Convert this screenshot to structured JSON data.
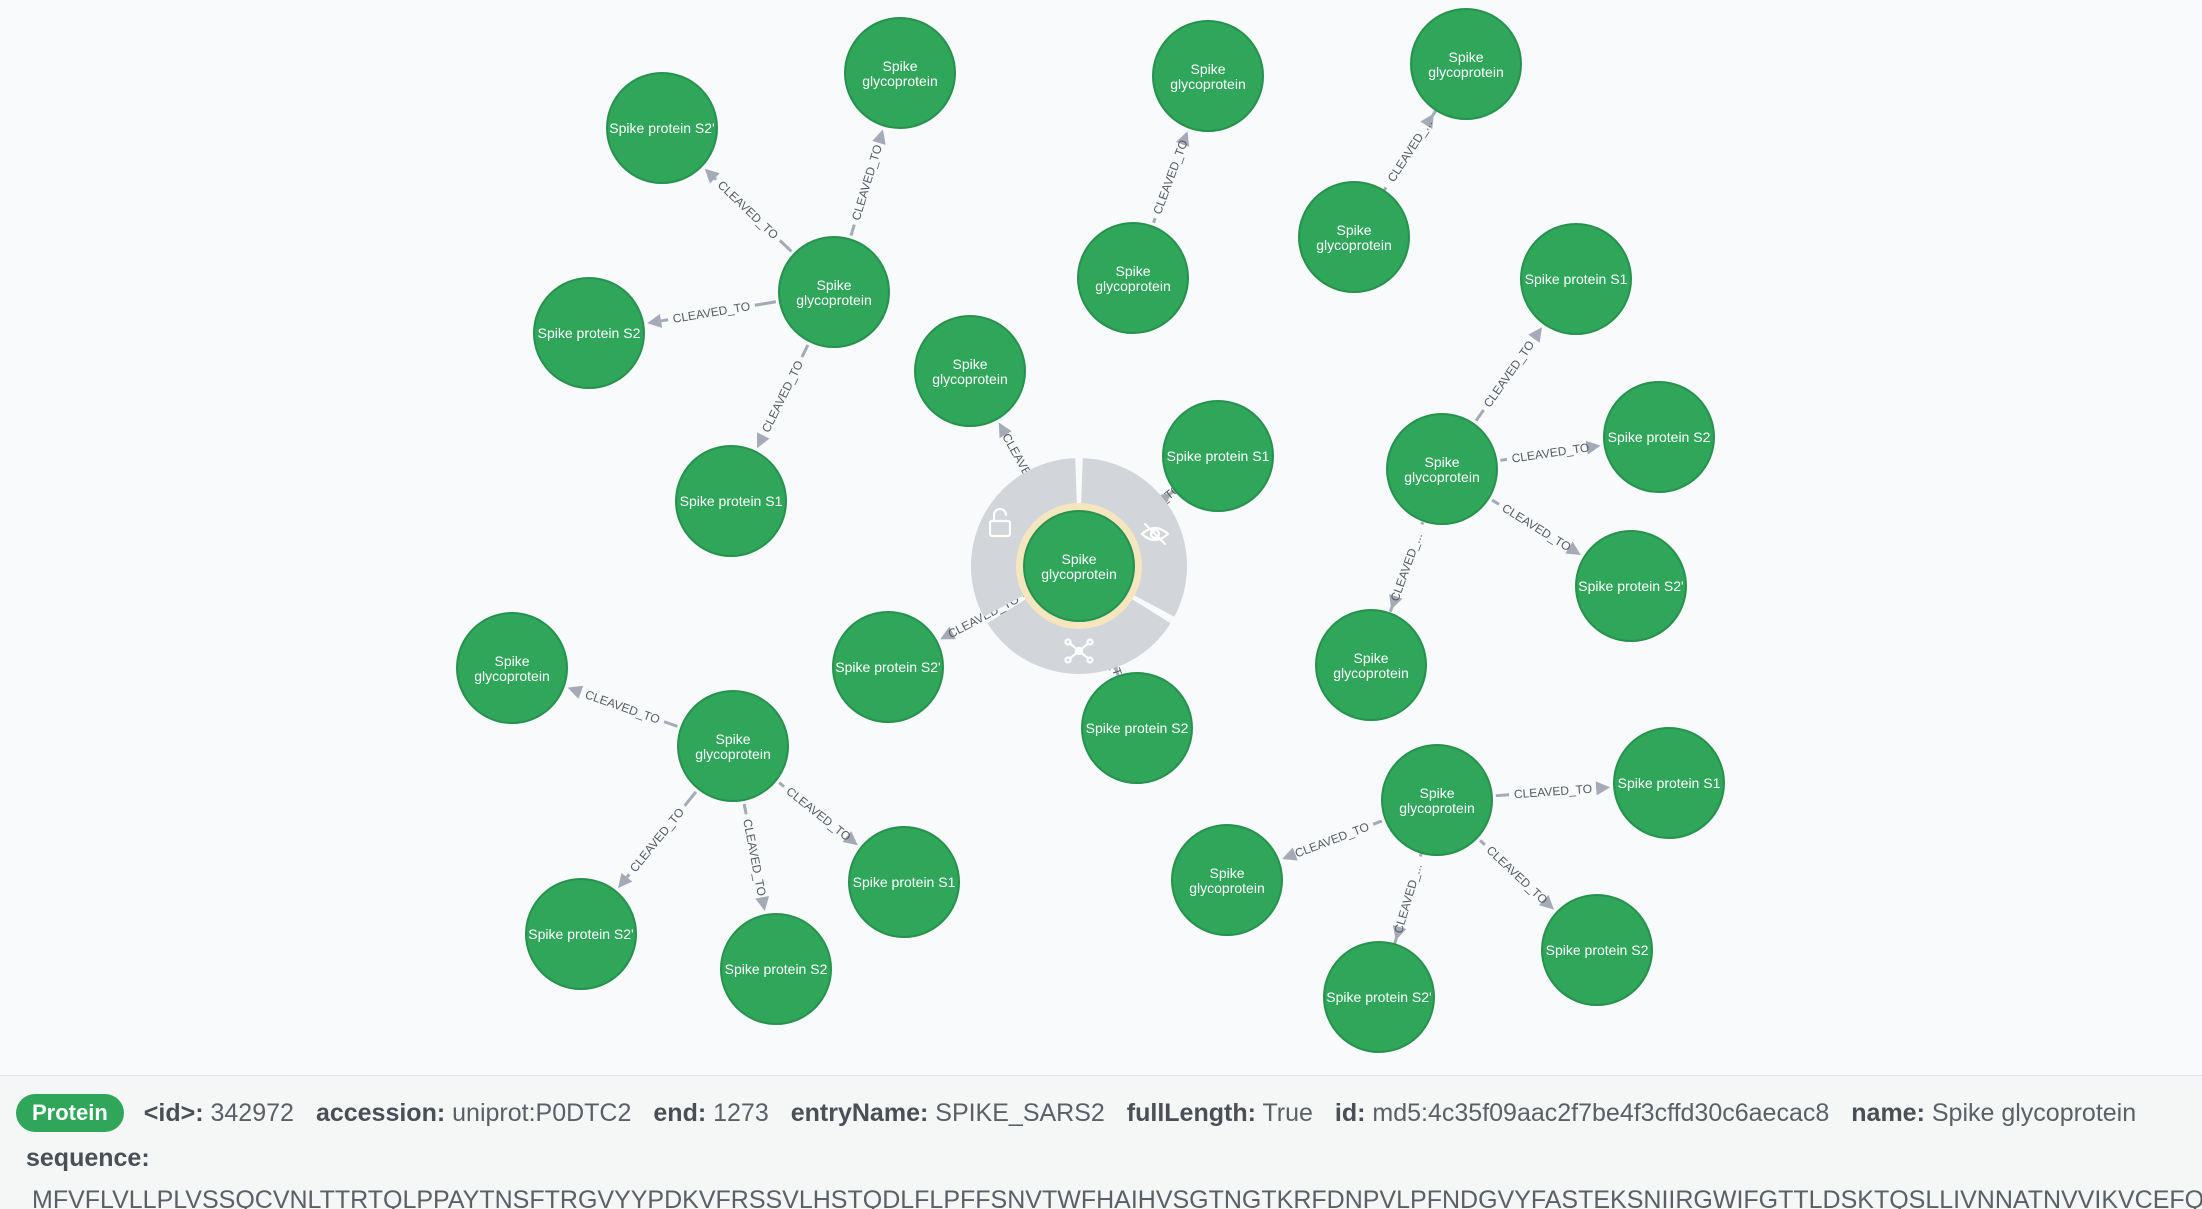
{
  "graph": {
    "relationship_type": "CLEAVED_TO",
    "relationship_type_truncated": "CLEAVED_...",
    "node_color": "#2fa65a",
    "edge_color": "#a5abb6",
    "selected_ring_color": "#f5e6bf",
    "menu_icons": [
      "unlock-icon",
      "hide-icon",
      "expand-icon"
    ],
    "clusters": [
      {
        "center": "Spike glycoprotein",
        "children": [
          {
            "label": "Spike glycoprotein",
            "edge": "CLEAVED_TO"
          },
          {
            "label": "Spike protein S2'",
            "edge": "CLEAVED_TO"
          },
          {
            "label": "Spike protein S2",
            "edge": "CLEAVED_TO"
          },
          {
            "label": "Spike protein S1",
            "edge": "CLEAVED_TO"
          }
        ]
      },
      {
        "center": "Spike glycoprotein",
        "children": [
          {
            "label": "Spike glycoprotein",
            "edge": "CLEAVED_TO"
          }
        ]
      },
      {
        "center": "Spike glycoprotein",
        "children": [
          {
            "label": "Spike glycoprotein",
            "edge": "CLEAVED_..."
          }
        ]
      },
      {
        "center": "Spike glycoprotein",
        "selected": true,
        "children": [
          {
            "label": "Spike glycoprotein",
            "edge": "CLEAVED_TO"
          },
          {
            "label": "Spike protein S1",
            "edge": "CLEAVED_TO"
          },
          {
            "label": "Spike protein S2'",
            "edge": "CLEAVED_TO"
          },
          {
            "label": "Spike protein S2",
            "edge": "CLEAVED_TO"
          }
        ]
      },
      {
        "center": "Spike glycoprotein",
        "children": [
          {
            "label": "Spike protein S1",
            "edge": "CLEAVED_TO"
          },
          {
            "label": "Spike protein S2",
            "edge": "CLEAVED_TO"
          },
          {
            "label": "Spike protein S2'",
            "edge": "CLEAVED_TO"
          },
          {
            "label": "Spike glycoprotein",
            "edge": "CLEAVED_..."
          }
        ]
      },
      {
        "center": "Spike glycoprotein",
        "children": [
          {
            "label": "Spike glycoprotein",
            "edge": "CLEAVED_TO"
          },
          {
            "label": "Spike protein S2'",
            "edge": "CLEAVED_TO"
          },
          {
            "label": "Spike protein S2",
            "edge": "CLEAVED_TO"
          },
          {
            "label": "Spike protein S1",
            "edge": "CLEAVED_TO"
          }
        ]
      },
      {
        "center": "Spike glycoprotein",
        "children": [
          {
            "label": "Spike protein S1",
            "edge": "CLEAVED_TO"
          },
          {
            "label": "Spike protein S2",
            "edge": "CLEAVED_TO"
          },
          {
            "label": "Spike protein S2'",
            "edge": "CLEAVED_..."
          },
          {
            "label": "Spike glycoprotein",
            "edge": "CLEAVED_TO"
          }
        ]
      }
    ]
  },
  "details": {
    "label": "Protein",
    "properties": [
      {
        "key": "<id>:",
        "value": "342972"
      },
      {
        "key": "accession:",
        "value": "uniprot:P0DTC2"
      },
      {
        "key": "end:",
        "value": "1273"
      },
      {
        "key": "entryName:",
        "value": "SPIKE_SARS2"
      },
      {
        "key": "fullLength:",
        "value": "True"
      },
      {
        "key": "id:",
        "value": "md5:4c35f09aac2f7be4f3cffd30c6aecac8"
      },
      {
        "key": "name:",
        "value": "Spike glycoprotein"
      }
    ],
    "sequence_key": "sequence:",
    "sequence_value": "MFVFLVLLPLVSSQCVNLTTRTQLPPAYTNSFTRGVYYPDKVFRSSVLHSTQDLFLPFFSNVTWFHAIHVSGTNGTKRFDNPVLPFNDGVYFASTEKSNIIRGWIFGTTLDSKTQSLLIVNNATNVVIKVCEFQ"
  }
}
